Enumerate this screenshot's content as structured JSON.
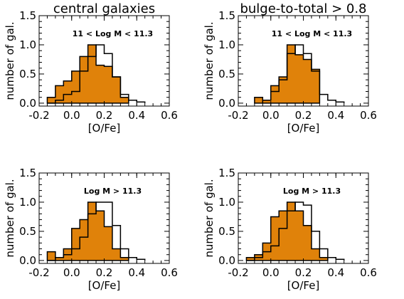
{
  "figure": {
    "column_titles": [
      "central galaxies",
      "bulge-to-total > 0.8"
    ]
  },
  "chart_data": [
    {
      "type": "histogram",
      "panel": "top-left",
      "title": "central galaxies",
      "annotation": "11 < Log M < 11.3",
      "xlabel": "[O/Fe]",
      "ylabel": "number of gal.",
      "xlim": [
        -0.2,
        0.6
      ],
      "ylim": [
        -0.05,
        1.5
      ],
      "xticks": [
        "-0.2",
        "0.0",
        "0.2",
        "0.4",
        "0.6"
      ],
      "yticks": [
        "0.0",
        "0.5",
        "1.0",
        "1.5"
      ],
      "bin_width": 0.05,
      "filled_edges": [
        -0.15,
        -0.1,
        -0.05,
        0.0,
        0.05,
        0.1,
        0.15,
        0.2,
        0.25,
        0.3,
        0.35
      ],
      "filled_values": [
        0.1,
        0.3,
        0.38,
        0.55,
        0.8,
        1.0,
        0.65,
        0.63,
        0.45,
        0.1
      ],
      "outline_edges": [
        -0.15,
        -0.1,
        -0.05,
        0.0,
        0.05,
        0.1,
        0.15,
        0.2,
        0.25,
        0.3,
        0.35,
        0.4,
        0.45
      ],
      "outline_values": [
        0.0,
        0.05,
        0.15,
        0.2,
        0.55,
        0.8,
        1.0,
        0.85,
        0.45,
        0.15,
        0.05,
        0.02
      ],
      "colors": {
        "fill": "#e0820a",
        "line": "#000000"
      }
    },
    {
      "type": "histogram",
      "panel": "top-right",
      "title": "bulge-to-total > 0.8",
      "annotation": "11 < Log M < 11.3",
      "xlabel": "[O/Fe]",
      "ylabel": "number of gal.",
      "xlim": [
        -0.2,
        0.6
      ],
      "ylim": [
        -0.05,
        1.5
      ],
      "xticks": [
        "-0.2",
        "0.0",
        "0.2",
        "0.4",
        "0.6"
      ],
      "yticks": [
        "0.0",
        "0.5",
        "1.0",
        "1.5"
      ],
      "bin_width": 0.05,
      "filled_edges": [
        -0.1,
        -0.05,
        0.0,
        0.05,
        0.1,
        0.15,
        0.2,
        0.25,
        0.3
      ],
      "filled_values": [
        0.1,
        0.05,
        0.3,
        0.45,
        1.0,
        0.83,
        0.75,
        0.58
      ],
      "outline_edges": [
        -0.05,
        0.0,
        0.05,
        0.1,
        0.15,
        0.2,
        0.25,
        0.3,
        0.35,
        0.4,
        0.45
      ],
      "outline_values": [
        0.05,
        0.2,
        0.4,
        0.85,
        1.0,
        0.85,
        0.55,
        0.15,
        0.05,
        0.02
      ],
      "colors": {
        "fill": "#e0820a",
        "line": "#000000"
      }
    },
    {
      "type": "histogram",
      "panel": "bottom-left",
      "annotation": "Log M > 11.3",
      "xlabel": "[O/Fe]",
      "ylabel": "number of gal.",
      "xlim": [
        -0.2,
        0.6
      ],
      "ylim": [
        -0.05,
        1.5
      ],
      "xticks": [
        "-0.2",
        "0.0",
        "0.2",
        "0.4",
        "0.6"
      ],
      "yticks": [
        "0.0",
        "0.5",
        "1.0",
        "1.5"
      ],
      "bin_width": 0.05,
      "filled_edges": [
        -0.15,
        -0.1,
        -0.05,
        0.0,
        0.05,
        0.1,
        0.15,
        0.2,
        0.25,
        0.3,
        0.35
      ],
      "filled_values": [
        0.15,
        0.05,
        0.2,
        0.55,
        0.7,
        1.0,
        0.85,
        0.58,
        0.2,
        0.05
      ],
      "outline_edges": [
        -0.15,
        -0.1,
        -0.05,
        0.0,
        0.05,
        0.1,
        0.15,
        0.2,
        0.25,
        0.3,
        0.35,
        0.4,
        0.45
      ],
      "outline_values": [
        0.0,
        0.05,
        0.1,
        0.2,
        0.4,
        0.8,
        1.0,
        1.0,
        0.6,
        0.2,
        0.05,
        0.02
      ],
      "colors": {
        "fill": "#e0820a",
        "line": "#000000"
      }
    },
    {
      "type": "histogram",
      "panel": "bottom-right",
      "annotation": "Log M > 11.3",
      "xlabel": "[O/Fe]",
      "ylabel": "number of gal.",
      "xlim": [
        -0.2,
        0.6
      ],
      "ylim": [
        -0.05,
        1.5
      ],
      "xticks": [
        "-0.2",
        "0.0",
        "0.2",
        "0.4",
        "0.6"
      ],
      "yticks": [
        "0.0",
        "0.5",
        "1.0",
        "1.5"
      ],
      "bin_width": 0.05,
      "filled_edges": [
        -0.15,
        -0.1,
        -0.05,
        0.0,
        0.05,
        0.1,
        0.15,
        0.2,
        0.25,
        0.3,
        0.35
      ],
      "filled_values": [
        0.05,
        0.1,
        0.3,
        0.75,
        0.85,
        1.0,
        0.85,
        0.6,
        0.2,
        0.05
      ],
      "outline_edges": [
        -0.15,
        -0.1,
        -0.05,
        0.0,
        0.05,
        0.1,
        0.15,
        0.2,
        0.25,
        0.3,
        0.35,
        0.4,
        0.45
      ],
      "outline_values": [
        0.0,
        0.05,
        0.15,
        0.25,
        0.55,
        0.85,
        1.0,
        0.95,
        0.5,
        0.2,
        0.05,
        0.02
      ],
      "colors": {
        "fill": "#e0820a",
        "line": "#000000"
      }
    }
  ]
}
